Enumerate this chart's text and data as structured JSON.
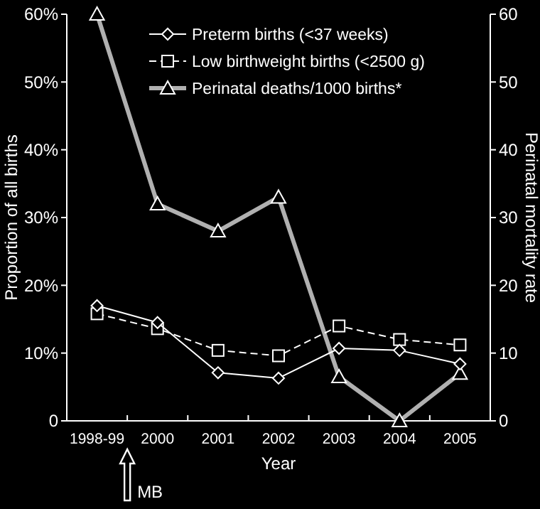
{
  "chart_data": {
    "type": "line",
    "xlabel": "Year",
    "ylabel": "Proportion of all births",
    "y2label": "Perinatal mortality rate",
    "categories": [
      "1998-99",
      "2000",
      "2001",
      "2002",
      "2003",
      "2004",
      "2005"
    ],
    "series": [
      {
        "name": "Preterm births (<37 weeks)",
        "color": "#ffffff",
        "marker": "diamond",
        "line_style": "solid",
        "values": [
          17.0,
          14.5,
          7.1,
          6.3,
          10.7,
          10.4,
          8.4
        ]
      },
      {
        "name": "Low birthweight births (<2500 g)",
        "color": "#ffffff",
        "marker": "square",
        "line_style": "dashed",
        "values": [
          15.8,
          13.6,
          10.4,
          9.6,
          14.0,
          12.0,
          11.2
        ]
      },
      {
        "name": "Perinatal deaths/1000 births*",
        "color": "#b0b0b0",
        "marker": "triangle",
        "line_style": "solid",
        "axis": "y2",
        "values": [
          60,
          32,
          28,
          33,
          6.5,
          0,
          7
        ]
      }
    ],
    "ylim": [
      0,
      60
    ],
    "yticks": [
      0,
      {
        "value": 10,
        "label": "10%"
      },
      {
        "value": 20,
        "label": "20%"
      },
      {
        "value": 30,
        "label": "30%"
      },
      {
        "value": 40,
        "label": "40%"
      },
      {
        "value": 50,
        "label": "50%"
      },
      {
        "value": 60,
        "label": "60%"
      }
    ],
    "y2lim": [
      0,
      60
    ],
    "y2ticks": [
      0,
      10,
      20,
      30,
      40,
      50,
      60
    ],
    "legend": "top right",
    "grid": false,
    "annotations": [
      "MB"
    ]
  }
}
